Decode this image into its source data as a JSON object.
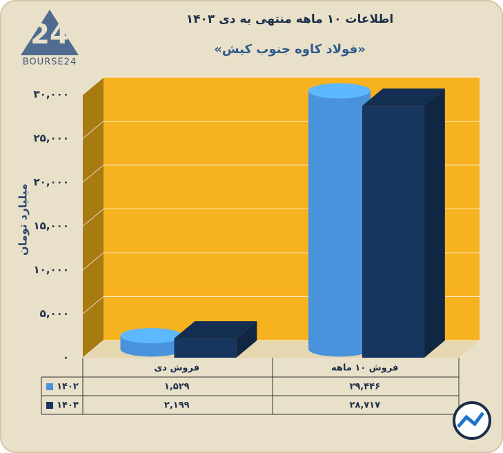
{
  "chart_data": {
    "type": "bar3d",
    "title": "اطلاعات ۱۰ ماهه منتهی به دی ۱۴۰۳",
    "subtitle": "«فولاد کاوه جنوب کیش»",
    "logo": "BOURSE24",
    "y_label": "میلیارد تومان",
    "categories": [
      "فروش دی",
      "فروش ۱۰ ماهه"
    ],
    "series": [
      {
        "name": "۱۴۰۲",
        "color": "#4a93dc",
        "shape": "cylinder",
        "values": [
          1529,
          29446
        ],
        "value_labels": [
          "۱,۵۲۹",
          "۲۹,۴۴۶"
        ]
      },
      {
        "name": "۱۴۰۳",
        "color": "#17365f",
        "shape": "box",
        "values": [
          2199,
          28717
        ],
        "value_labels": [
          "۲,۱۹۹",
          "۲۸,۷۱۷"
        ]
      }
    ],
    "ylim": [
      0,
      30000
    ],
    "yticks": [
      {
        "value": 0,
        "label": "۰"
      },
      {
        "value": 5000,
        "label": "۵,۰۰۰"
      },
      {
        "value": 10000,
        "label": "۱۰,۰۰۰"
      },
      {
        "value": 15000,
        "label": "۱۵,۰۰۰"
      },
      {
        "value": 20000,
        "label": "۲۰,۰۰۰"
      },
      {
        "value": 25000,
        "label": "۲۵,۰۰۰"
      },
      {
        "value": 30000,
        "label": "۳۰,۰۰۰"
      }
    ],
    "grid": true
  }
}
